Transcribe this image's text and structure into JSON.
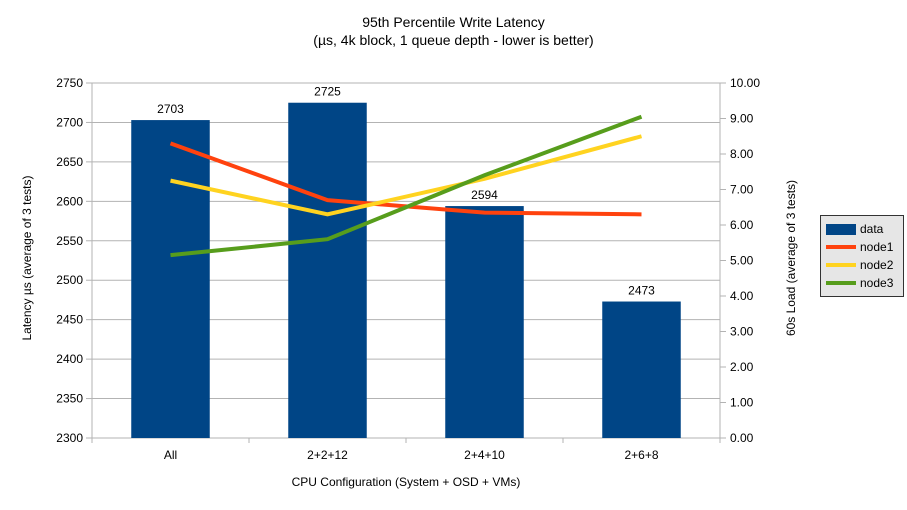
{
  "chart_data": {
    "type": "bar",
    "subtype": "bar-and-line-dual-axis",
    "title": "95th Percentile Write Latency",
    "subtitle": "(µs, 4k block, 1 queue depth - lower is better)",
    "categories": [
      "All",
      "2+2+12",
      "2+4+10",
      "2+6+8"
    ],
    "xlabel": "CPU Configuration (System + OSD + VMs)",
    "left_axis": {
      "label": "Latency µs (average of 3 tests)",
      "min": 2300,
      "max": 2750,
      "step": 50
    },
    "right_axis": {
      "label": "60s Load (average of 3 tests)",
      "min": 0,
      "max": 10,
      "step": 1,
      "decimals": 2
    },
    "series": [
      {
        "name": "data",
        "type": "bar",
        "axis": "left",
        "color": "#004586",
        "values": [
          2703,
          2725,
          2594,
          2473
        ],
        "data_labels": [
          "2703",
          "2725",
          "2594",
          "2473"
        ]
      },
      {
        "name": "node1",
        "type": "line",
        "axis": "right",
        "color": "#FF420E",
        "values": [
          8.3,
          6.7,
          6.35,
          6.3
        ]
      },
      {
        "name": "node2",
        "type": "line",
        "axis": "right",
        "color": "#FFD320",
        "values": [
          7.25,
          6.3,
          7.3,
          8.5
        ]
      },
      {
        "name": "node3",
        "type": "line",
        "axis": "right",
        "color": "#579D1C",
        "values": [
          5.15,
          5.6,
          7.4,
          9.05
        ]
      }
    ],
    "legend": {
      "position": "right",
      "entries": [
        "data",
        "node1",
        "node2",
        "node3"
      ]
    },
    "grid": true,
    "colors": {
      "background": "#ffffff",
      "grid": "#b3b3b3",
      "text": "#000000",
      "legend_background": "#e6e6e6",
      "legend_border": "#333333"
    }
  }
}
